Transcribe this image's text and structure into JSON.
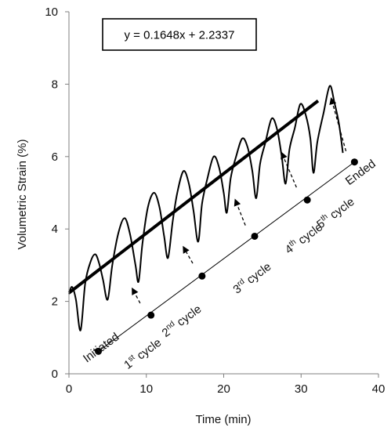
{
  "chart_data": {
    "type": "line",
    "xlabel": "Time (min)",
    "ylabel": "Volumetric Strain (%)",
    "xlim": [
      0,
      40
    ],
    "ylim": [
      0,
      10
    ],
    "xticks": [
      0,
      10,
      20,
      30,
      40
    ],
    "yticks": [
      0,
      2,
      4,
      6,
      8,
      10
    ],
    "grid": false,
    "equation": "y = 0.1648x + 2.2337",
    "trendline": {
      "slope": 0.1648,
      "intercept": 2.2337,
      "x": [
        0,
        32.2
      ]
    },
    "series": [
      {
        "values_xy": [
          [
            0,
            2.2
          ],
          [
            0.4,
            2.4
          ],
          [
            0.9,
            2.05
          ],
          [
            1.5,
            1.2
          ],
          [
            2.1,
            2.5
          ],
          [
            2.8,
            3.1
          ],
          [
            3.4,
            3.3
          ],
          [
            3.9,
            3.05
          ],
          [
            4.4,
            2.6
          ],
          [
            5.0,
            2.05
          ],
          [
            5.6,
            3.0
          ],
          [
            6.4,
            3.9
          ],
          [
            7.2,
            4.3
          ],
          [
            7.9,
            3.85
          ],
          [
            8.6,
            3.0
          ],
          [
            9.0,
            2.55
          ],
          [
            9.5,
            3.6
          ],
          [
            10.2,
            4.6
          ],
          [
            11.0,
            5.0
          ],
          [
            11.7,
            4.6
          ],
          [
            12.3,
            3.8
          ],
          [
            12.8,
            3.2
          ],
          [
            13.4,
            4.2
          ],
          [
            14.0,
            5.0
          ],
          [
            14.8,
            5.6
          ],
          [
            15.5,
            5.25
          ],
          [
            16.1,
            4.5
          ],
          [
            16.7,
            3.65
          ],
          [
            17.2,
            4.7
          ],
          [
            17.9,
            5.4
          ],
          [
            18.7,
            6.0
          ],
          [
            19.4,
            5.7
          ],
          [
            20.0,
            5.0
          ],
          [
            20.4,
            4.45
          ],
          [
            20.9,
            5.4
          ],
          [
            21.6,
            6.0
          ],
          [
            22.4,
            6.5
          ],
          [
            23.1,
            6.25
          ],
          [
            23.7,
            5.6
          ],
          [
            24.2,
            4.85
          ],
          [
            24.7,
            5.8
          ],
          [
            25.4,
            6.4
          ],
          [
            26.2,
            7.05
          ],
          [
            26.9,
            6.75
          ],
          [
            27.5,
            6.0
          ],
          [
            28.0,
            5.25
          ],
          [
            28.5,
            6.2
          ],
          [
            29.2,
            6.8
          ],
          [
            29.9,
            7.45
          ],
          [
            30.6,
            7.15
          ],
          [
            31.2,
            6.5
          ],
          [
            31.6,
            5.55
          ],
          [
            32.1,
            6.4
          ],
          [
            32.9,
            7.2
          ],
          [
            33.7,
            7.95
          ],
          [
            34.3,
            7.5
          ],
          [
            34.9,
            6.9
          ],
          [
            35.4,
            6.1
          ]
        ]
      }
    ],
    "annotations": {
      "timeline": [
        {
          "label": "Initiated",
          "x": 3.8,
          "y": 0.62
        },
        {
          "label": "1st cycle",
          "x": 10.6,
          "y": 1.62
        },
        {
          "label": "2nd cycle",
          "x": 17.2,
          "y": 2.7
        },
        {
          "label": "3rd cycle",
          "x": 24.0,
          "y": 3.8
        },
        {
          "label": "4th cycle",
          "x": 30.8,
          "y": 4.8
        },
        {
          "label": "Ended",
          "x": 36.9,
          "y": 5.85
        }
      ],
      "labels": [
        {
          "text": "Initiated",
          "x": 2.3,
          "y": 0.3
        },
        {
          "base": "1",
          "sup": "st",
          "rest": " cycle",
          "x": 7.6,
          "y": 0.12
        },
        {
          "base": "2",
          "sup": "nd",
          "rest": " cycle",
          "x": 12.5,
          "y": 1.0
        },
        {
          "base": "3",
          "sup": "rd",
          "rest": " cycle",
          "x": 21.7,
          "y": 2.2
        },
        {
          "base": "4",
          "sup": "th",
          "rest": " cycle",
          "x": 28.4,
          "y": 3.3
        },
        {
          "base": "5",
          "sup": "th",
          "rest": " cycle",
          "x": 32.5,
          "y": 4.0
        },
        {
          "text": "Ended",
          "x": 36.2,
          "y": 5.2
        }
      ],
      "arrows": [
        {
          "from": [
            9.2,
            1.95
          ],
          "to": [
            8.2,
            2.35
          ]
        },
        {
          "from": [
            16.0,
            3.05
          ],
          "to": [
            14.8,
            3.5
          ]
        },
        {
          "from": [
            22.8,
            4.1
          ],
          "to": [
            21.5,
            4.8
          ]
        },
        {
          "from": [
            29.4,
            5.15
          ],
          "to": [
            27.5,
            6.1
          ]
        },
        {
          "from": [
            35.8,
            6.15
          ],
          "to": [
            33.9,
            7.6
          ]
        }
      ]
    }
  }
}
